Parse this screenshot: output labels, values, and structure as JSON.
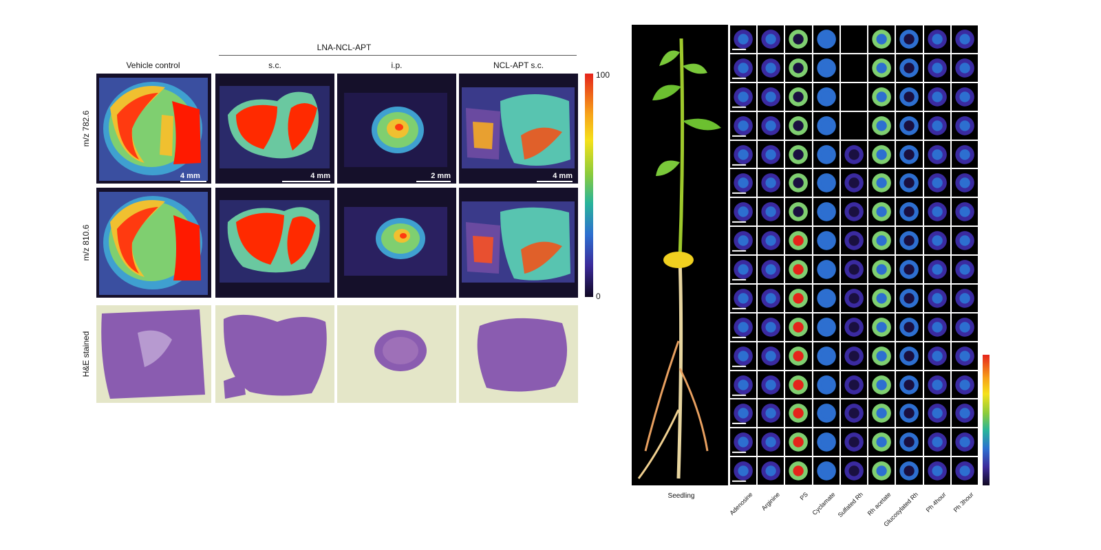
{
  "left": {
    "group_header": "LNA-NCL-APT",
    "columns": [
      {
        "label": "Vehicle control",
        "scale": "4 mm"
      },
      {
        "label": "s.c.",
        "scale": "4 mm"
      },
      {
        "label": "i.p.",
        "scale": "2 mm"
      },
      {
        "label": "NCL-APT s.c.",
        "scale": "4 mm"
      }
    ],
    "rows": [
      "m/z 782.6",
      "m/z 810.6",
      "H&E stained"
    ],
    "colorbar": {
      "max": "100",
      "min": "0"
    }
  },
  "right": {
    "seedling_label": "Seedling",
    "column_labels": [
      "Adenosine",
      "Arginine",
      "PS",
      "Cyclamate",
      "Sulfated Rh",
      "Rh acetate",
      "Glucosylated Rh",
      "Ph 4hour",
      "Ph 3hour"
    ]
  },
  "colors": {
    "panel_bg": "#15102a",
    "high": "#ff1a00",
    "mid": "#44c8a0",
    "stain": "#8a5cb0",
    "stain_bg": "#e4e6c8"
  }
}
